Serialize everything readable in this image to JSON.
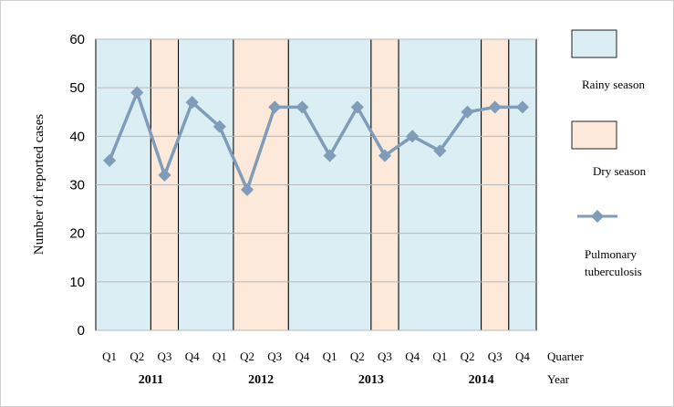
{
  "chart_data": {
    "type": "line",
    "ylabel": "Number of reported cases",
    "ylim": [
      0,
      60
    ],
    "yticks": [
      0,
      10,
      20,
      30,
      40,
      50,
      60
    ],
    "grid": "horizontal",
    "x": [
      "Q1",
      "Q2",
      "Q3",
      "Q4",
      "Q1",
      "Q2",
      "Q3",
      "Q4",
      "Q1",
      "Q2",
      "Q3",
      "Q4",
      "Q1",
      "Q2",
      "Q3",
      "Q4"
    ],
    "x_row_label": "Quarter",
    "years": [
      "2011",
      "2012",
      "2013",
      "2014"
    ],
    "year_row_label": "Year",
    "series": [
      {
        "name": "Pulmonary tuberculosis",
        "values": [
          35,
          49,
          32,
          47,
          42,
          29,
          46,
          46,
          36,
          46,
          36,
          40,
          37,
          45,
          46,
          46
        ],
        "color": "#7f9db9"
      }
    ],
    "season_bands": [
      "rainy",
      "rainy",
      "dry",
      "rainy",
      "rainy",
      "dry",
      "dry",
      "rainy",
      "rainy",
      "rainy",
      "dry",
      "rainy",
      "rainy",
      "rainy",
      "dry",
      "rainy"
    ],
    "season_colors": {
      "rainy": "#dbeef4",
      "dry": "#fde9d9"
    },
    "legend": {
      "placement": "right",
      "rainy_label": "Rainy season",
      "dry_label": "Dry season",
      "series_label_line1": "Pulmonary",
      "series_label_line2": "tuberculosis"
    }
  }
}
